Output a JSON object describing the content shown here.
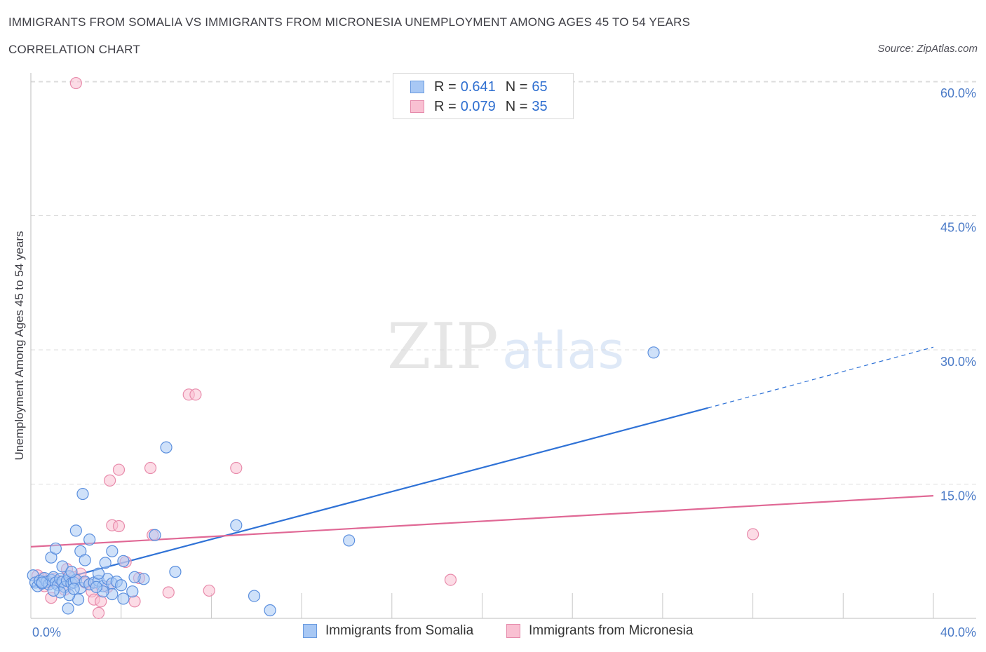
{
  "header": {
    "title": "IMMIGRANTS FROM SOMALIA VS IMMIGRANTS FROM MICRONESIA UNEMPLOYMENT AMONG AGES 45 TO 54 YEARS",
    "subtitle": "CORRELATION CHART",
    "source": "Source: ZipAtlas.com"
  },
  "watermark": {
    "zip": "ZIP",
    "atlas": "atlas"
  },
  "legend": {
    "rows": [
      {
        "r_label": "R =",
        "r_value": "0.641",
        "n_label": "N =",
        "n_value": "65",
        "color": "#a8c8f4",
        "border": "#6a9be0"
      },
      {
        "r_label": "R =",
        "r_value": "0.079",
        "n_label": "N =",
        "n_value": "35",
        "color": "#f9c0d2",
        "border": "#e58aab"
      }
    ]
  },
  "bottom_legend": {
    "somalia": "Immigrants from Somalia",
    "micronesia": "Immigrants from Micronesia"
  },
  "colors": {
    "somalia_fill": "#a8c8f4",
    "somalia_stroke": "#5b8fde",
    "somalia_line": "#2f72d6",
    "micronesia_fill": "#f9c0d2",
    "micronesia_stroke": "#e88bab",
    "micronesia_line": "#e06895",
    "grid": "#dcdcdc",
    "tick_text": "#4a7ac7"
  },
  "chart_data": {
    "type": "scatter",
    "title": "IMMIGRANTS FROM SOMALIA VS IMMIGRANTS FROM MICRONESIA UNEMPLOYMENT AMONG AGES 45 TO 54 YEARS",
    "ylabel": "Unemployment Among Ages 45 to 54 years",
    "xlabel": "",
    "xlim": [
      0,
      40
    ],
    "ylim": [
      0,
      60
    ],
    "y_ticks": [
      {
        "value": 15,
        "label": "15.0%"
      },
      {
        "value": 30,
        "label": "30.0%"
      },
      {
        "value": 45,
        "label": "45.0%"
      },
      {
        "value": 60,
        "label": "60.0%"
      }
    ],
    "x_tick_labels": [
      {
        "value": 0,
        "label": "0.0%"
      },
      {
        "value": 40,
        "label": "40.0%"
      }
    ],
    "x_minor_ticks": [
      0,
      4,
      8,
      12,
      16,
      20,
      24,
      28,
      32,
      36,
      40
    ],
    "grid": true,
    "legend_position": "top-center",
    "series": [
      {
        "name": "Immigrants from Somalia",
        "r": 0.641,
        "n": 65,
        "trend": {
          "x0": 0,
          "y0": 3.5,
          "x1": 30,
          "y1": 23.5,
          "dashed_to_x": 40,
          "dashed_to_y": 30.3
        },
        "points": [
          [
            0.1,
            4.8
          ],
          [
            0.2,
            4.0
          ],
          [
            0.3,
            3.6
          ],
          [
            0.4,
            4.2
          ],
          [
            0.5,
            3.9
          ],
          [
            0.6,
            4.5
          ],
          [
            0.7,
            4.1
          ],
          [
            0.8,
            3.8
          ],
          [
            0.9,
            4.3
          ],
          [
            1.0,
            4.6
          ],
          [
            1.1,
            4.0
          ],
          [
            1.2,
            3.7
          ],
          [
            1.3,
            4.4
          ],
          [
            1.4,
            4.1
          ],
          [
            1.5,
            3.5
          ],
          [
            1.6,
            4.2
          ],
          [
            1.7,
            4.7
          ],
          [
            1.8,
            3.9
          ],
          [
            1.9,
            4.0
          ],
          [
            2.0,
            4.3
          ],
          [
            2.2,
            3.4
          ],
          [
            2.4,
            4.1
          ],
          [
            2.6,
            3.8
          ],
          [
            2.8,
            4.0
          ],
          [
            3.0,
            4.2
          ],
          [
            3.2,
            3.6
          ],
          [
            3.4,
            4.4
          ],
          [
            3.6,
            3.9
          ],
          [
            3.8,
            4.1
          ],
          [
            4.0,
            3.7
          ],
          [
            0.9,
            6.8
          ],
          [
            1.1,
            7.8
          ],
          [
            1.4,
            5.8
          ],
          [
            1.8,
            5.2
          ],
          [
            2.0,
            9.8
          ],
          [
            2.2,
            7.5
          ],
          [
            2.4,
            6.5
          ],
          [
            2.6,
            8.8
          ],
          [
            3.0,
            5.0
          ],
          [
            3.3,
            6.2
          ],
          [
            3.6,
            7.5
          ],
          [
            4.1,
            6.4
          ],
          [
            2.3,
            13.9
          ],
          [
            6.0,
            19.1
          ],
          [
            5.5,
            9.3
          ],
          [
            6.4,
            5.2
          ],
          [
            9.1,
            10.4
          ],
          [
            14.1,
            8.7
          ],
          [
            27.6,
            29.7
          ],
          [
            9.9,
            2.5
          ],
          [
            10.6,
            0.9
          ],
          [
            4.5,
            3.0
          ],
          [
            4.1,
            2.2
          ],
          [
            3.6,
            2.7
          ],
          [
            2.1,
            2.1
          ],
          [
            1.7,
            2.6
          ],
          [
            1.3,
            2.9
          ],
          [
            5.0,
            4.4
          ],
          [
            4.6,
            4.6
          ],
          [
            3.2,
            3.0
          ],
          [
            2.9,
            3.5
          ],
          [
            1.9,
            3.3
          ],
          [
            1.0,
            3.1
          ],
          [
            1.65,
            1.1
          ],
          [
            0.5,
            4.0
          ]
        ]
      },
      {
        "name": "Immigrants from Micronesia",
        "r": 0.079,
        "n": 35,
        "trend": {
          "x0": 0,
          "y0": 8.0,
          "x1": 40,
          "y1": 13.7
        },
        "points": [
          [
            2.0,
            59.8
          ],
          [
            7.0,
            25.0
          ],
          [
            7.3,
            25.0
          ],
          [
            3.5,
            15.4
          ],
          [
            3.9,
            16.6
          ],
          [
            5.3,
            16.8
          ],
          [
            9.1,
            16.8
          ],
          [
            3.6,
            10.4
          ],
          [
            3.9,
            10.3
          ],
          [
            5.4,
            9.3
          ],
          [
            4.2,
            6.3
          ],
          [
            2.2,
            5.0
          ],
          [
            1.6,
            5.5
          ],
          [
            0.5,
            4.5
          ],
          [
            0.8,
            4.0
          ],
          [
            1.2,
            4.2
          ],
          [
            0.9,
            2.3
          ],
          [
            1.5,
            3.2
          ],
          [
            2.6,
            3.8
          ],
          [
            2.7,
            3.0
          ],
          [
            2.8,
            2.1
          ],
          [
            3.1,
            1.9
          ],
          [
            3.0,
            0.6
          ],
          [
            4.6,
            1.9
          ],
          [
            4.8,
            4.5
          ],
          [
            6.1,
            2.9
          ],
          [
            7.9,
            3.1
          ],
          [
            18.6,
            4.3
          ],
          [
            32.0,
            9.4
          ],
          [
            0.3,
            4.8
          ],
          [
            0.6,
            3.6
          ],
          [
            1.0,
            4.4
          ],
          [
            2.4,
            4.0
          ],
          [
            3.4,
            3.5
          ],
          [
            1.9,
            4.6
          ]
        ]
      }
    ]
  }
}
